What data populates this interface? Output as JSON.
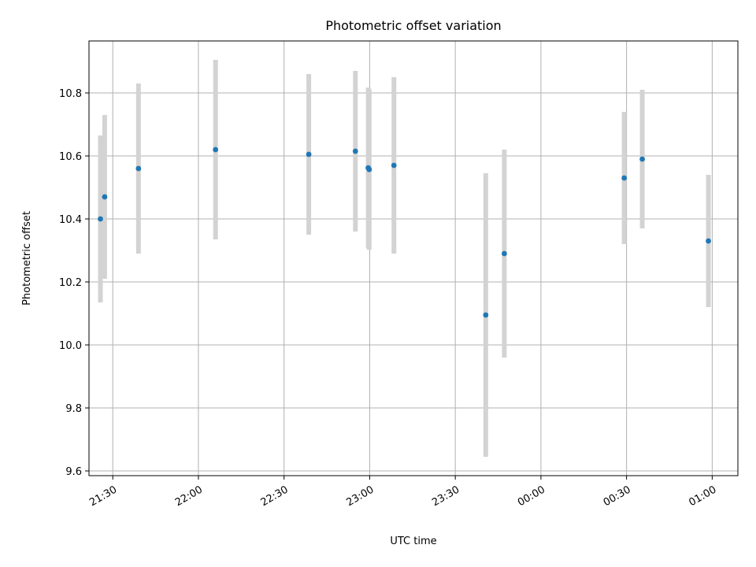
{
  "chart_data": {
    "type": "scatter",
    "title": "Photometric offset variation",
    "xlabel": "UTC time",
    "ylabel": "Photometric offset",
    "x_ticks": [
      "21:30",
      "22:00",
      "22:30",
      "23:00",
      "23:30",
      "00:00",
      "00:30",
      "01:00"
    ],
    "y_ticks": [
      "9.6",
      "9.8",
      "10.0",
      "10.2",
      "10.4",
      "10.6",
      "10.8"
    ],
    "xlim": [
      "21:21:40",
      "01:09:00"
    ],
    "ylim": [
      9.585,
      10.965
    ],
    "grid": true,
    "marker_color": "#1f77b4",
    "errorbar_color": "#d3d3d3",
    "points": [
      {
        "x": "21:25:40",
        "y": 10.4,
        "err": 0.265
      },
      {
        "x": "21:27:10",
        "y": 10.47,
        "err": 0.26
      },
      {
        "x": "21:39:00",
        "y": 10.56,
        "err": 0.27
      },
      {
        "x": "22:06:00",
        "y": 10.62,
        "err": 0.285
      },
      {
        "x": "22:38:40",
        "y": 10.605,
        "err": 0.255
      },
      {
        "x": "22:55:00",
        "y": 10.615,
        "err": 0.255
      },
      {
        "x": "22:59:30",
        "y": 10.562,
        "err": 0.255
      },
      {
        "x": "22:59:50",
        "y": 10.557,
        "err": 0.255
      },
      {
        "x": "23:08:30",
        "y": 10.57,
        "err": 0.28
      },
      {
        "x": "23:40:40",
        "y": 10.095,
        "err": 0.45
      },
      {
        "x": "23:47:10",
        "y": 10.29,
        "err": 0.33
      },
      {
        "x": "00:29:10",
        "y": 10.53,
        "err": 0.21
      },
      {
        "x": "00:35:30",
        "y": 10.59,
        "err": 0.22
      },
      {
        "x": "00:58:40",
        "y": 10.33,
        "err": 0.21
      }
    ]
  }
}
